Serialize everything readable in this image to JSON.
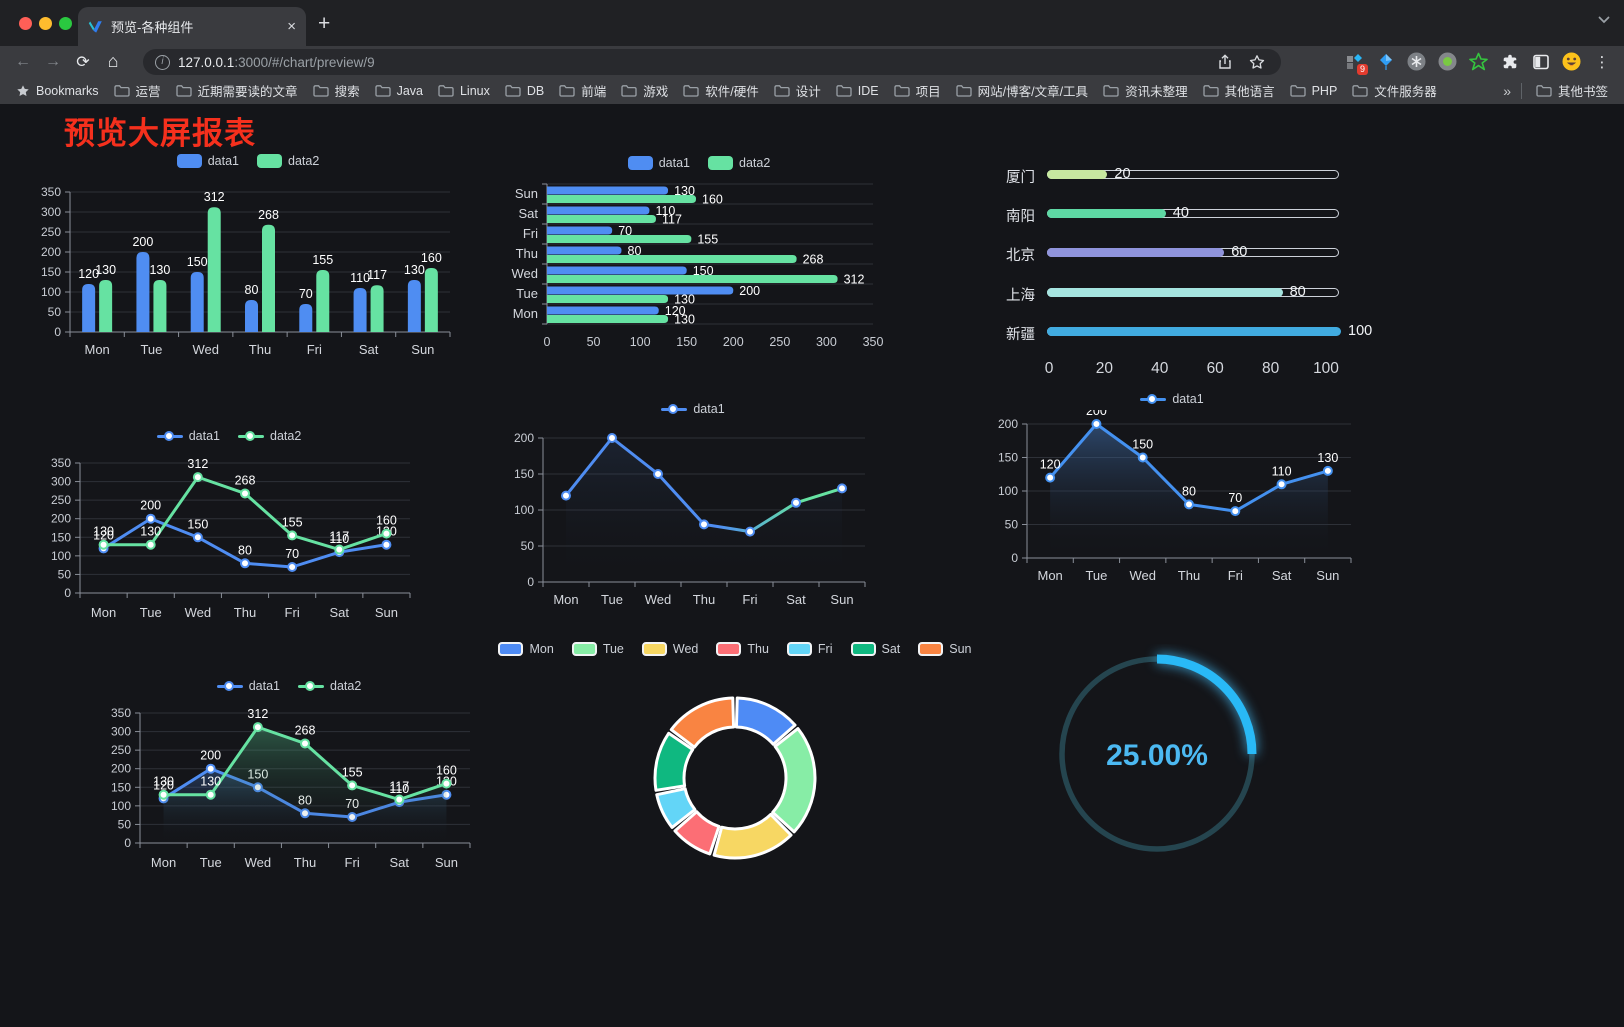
{
  "browser": {
    "tab_title": "预览-各种组件",
    "url_host": "127.0.0.1",
    "url_rest": ":3000/#/chart/preview/9",
    "bookmarks_label": "Bookmarks",
    "bookmarks": [
      "运营",
      "近期需要读的文章",
      "搜索",
      "Java",
      "Linux",
      "DB",
      "前端",
      "游戏",
      "软件/硬件",
      "设计",
      "IDE",
      "项目",
      "网站/博客/文章/工具",
      "资讯未整理",
      "其他语言",
      "PHP",
      "文件服务器"
    ],
    "overflow_chevron": "»",
    "other_bookmarks": "其他书签",
    "extension_badge": "9",
    "extensions": [
      "grid-diamond-extension",
      "kite-extension",
      "asterisk-extension",
      "record-extension",
      "green-star-extension",
      "puzzle-extensions",
      "sidebar-toggle",
      "emoji-extension"
    ]
  },
  "page": {
    "title": "预览大屏报表",
    "title_color": "#f5301d",
    "background": "#141519"
  },
  "chart_data": [
    {
      "id": "bar-grouped",
      "type": "bar",
      "legend": [
        "data1",
        "data2"
      ],
      "categories": [
        "Mon",
        "Tue",
        "Wed",
        "Thu",
        "Fri",
        "Sat",
        "Sun"
      ],
      "series": [
        {
          "name": "data1",
          "color": "#4f8df2",
          "values": [
            120,
            200,
            150,
            80,
            70,
            110,
            130
          ]
        },
        {
          "name": "data2",
          "color": "#66e2a2",
          "values": [
            130,
            130,
            312,
            268,
            155,
            117,
            160
          ]
        }
      ],
      "ylim": [
        0,
        350
      ],
      "ytick": 50,
      "labels": true
    },
    {
      "id": "bar-horizontal",
      "type": "hbar",
      "legend": [
        "data1",
        "data2"
      ],
      "categories": [
        "Mon",
        "Tue",
        "Wed",
        "Thu",
        "Fri",
        "Sat",
        "Sun"
      ],
      "y_order_top_to_bottom": [
        "Sun",
        "Sat",
        "Fri",
        "Thu",
        "Wed",
        "Tue",
        "Mon"
      ],
      "series": [
        {
          "name": "data1",
          "color": "#4f8df2",
          "values": [
            120,
            200,
            150,
            80,
            70,
            110,
            130
          ]
        },
        {
          "name": "data2",
          "color": "#66e2a2",
          "values": [
            130,
            130,
            312,
            268,
            155,
            117,
            160
          ]
        }
      ],
      "xlim": [
        0,
        350
      ],
      "xtick": 50,
      "labels": true
    },
    {
      "id": "progress-list",
      "type": "progress",
      "items": [
        {
          "label": "厦门",
          "value": 20,
          "color": "#c7e8a0"
        },
        {
          "label": "南阳",
          "value": 40,
          "color": "#5ed8a4"
        },
        {
          "label": "北京",
          "value": 60,
          "color": "#9094dc"
        },
        {
          "label": "上海",
          "value": 80,
          "color": "#a6e4e0"
        },
        {
          "label": "新疆",
          "value": 100,
          "color": "#41abe0"
        }
      ],
      "max": 100,
      "xticks": [
        0,
        20,
        40,
        60,
        80,
        100
      ]
    },
    {
      "id": "line-two-series",
      "type": "line",
      "legend": [
        "data1",
        "data2"
      ],
      "categories": [
        "Mon",
        "Tue",
        "Wed",
        "Thu",
        "Fri",
        "Sat",
        "Sun"
      ],
      "series": [
        {
          "name": "data1",
          "color": "#4f8df2",
          "values": [
            120,
            200,
            150,
            80,
            70,
            110,
            130
          ]
        },
        {
          "name": "data2",
          "color": "#66e2a2",
          "values": [
            130,
            130,
            312,
            268,
            155,
            117,
            160
          ]
        }
      ],
      "ylim": [
        0,
        350
      ],
      "ytick": 50,
      "labels": true
    },
    {
      "id": "line-gradient",
      "type": "line",
      "legend": [
        "data1"
      ],
      "categories": [
        "Mon",
        "Tue",
        "Wed",
        "Thu",
        "Fri",
        "Sat",
        "Sun"
      ],
      "series": [
        {
          "name": "data1",
          "color": "#4f8df2",
          "color_end": "#66e2a2",
          "gradient": true,
          "values": [
            120,
            200,
            150,
            80,
            70,
            110,
            130
          ],
          "area": "rgba(60,100,160,0.18)"
        }
      ],
      "ylim": [
        0,
        200
      ],
      "ytick": 50,
      "labels": false
    },
    {
      "id": "line-area",
      "type": "line",
      "legend": [
        "data1"
      ],
      "categories": [
        "Mon",
        "Tue",
        "Wed",
        "Thu",
        "Fri",
        "Sat",
        "Sun"
      ],
      "series": [
        {
          "name": "data1",
          "color": "#4491f0",
          "values": [
            120,
            200,
            150,
            80,
            70,
            110,
            130
          ],
          "area": "rgba(70,122,190,0.50)"
        }
      ],
      "ylim": [
        0,
        200
      ],
      "ytick": 50,
      "labels": true
    },
    {
      "id": "line-two-area",
      "type": "line",
      "legend": [
        "data1",
        "data2"
      ],
      "categories": [
        "Mon",
        "Tue",
        "Wed",
        "Thu",
        "Fri",
        "Sat",
        "Sun"
      ],
      "series": [
        {
          "name": "data1",
          "color": "#4f8df2",
          "values": [
            120,
            200,
            150,
            80,
            70,
            110,
            130
          ],
          "area": "rgba(79,141,242,0.30)"
        },
        {
          "name": "data2",
          "color": "#66e2a2",
          "values": [
            130,
            130,
            312,
            268,
            155,
            117,
            160
          ],
          "area": "rgba(95,224,160,0.32)"
        }
      ],
      "ylim": [
        0,
        350
      ],
      "ytick": 50,
      "labels": true
    },
    {
      "id": "donut",
      "type": "pie",
      "legend": [
        "Mon",
        "Tue",
        "Wed",
        "Thu",
        "Fri",
        "Sat",
        "Sun"
      ],
      "values": [
        120,
        200,
        150,
        80,
        70,
        110,
        130
      ],
      "colors": [
        "#4e8bf5",
        "#87eda6",
        "#f7d763",
        "#fc6e75",
        "#63d5f7",
        "#0fb880",
        "#f98442"
      ]
    },
    {
      "id": "gauge",
      "type": "gauge",
      "value": 25,
      "text": "25.00%",
      "color": "#29b9f6",
      "track": "#25454f",
      "text_color": "#4cb9f2"
    }
  ]
}
